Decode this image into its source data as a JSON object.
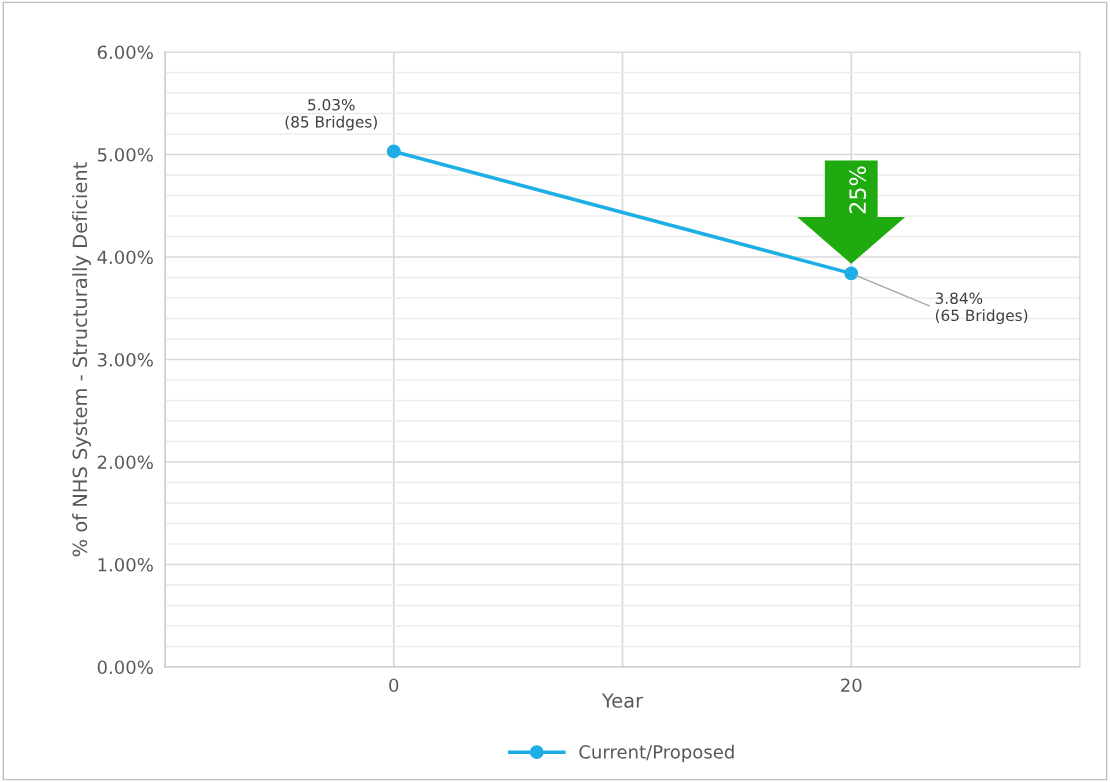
{
  "chart_data": {
    "type": "line",
    "xlabel": "Year",
    "ylabel": "% of NHS System - Structurally Deficient",
    "x": [
      0,
      20
    ],
    "series": [
      {
        "name": "Current/Proposed",
        "color": "#1eaee6",
        "values": [
          5.03,
          3.84
        ],
        "value_labels": [
          "5.03%\n(85 Bridges)",
          "3.84%\n(65 Bridges)"
        ]
      }
    ],
    "xlim": [
      -10,
      30
    ],
    "xticks": [
      {
        "value": -10,
        "label": null
      },
      {
        "value": 0,
        "label": "0"
      },
      {
        "value": 10,
        "label": null
      },
      {
        "value": 20,
        "label": "20"
      },
      {
        "value": 30,
        "label": null
      }
    ],
    "ylim": [
      0,
      6
    ],
    "yticks": [
      {
        "value": 0,
        "label": "0.00%"
      },
      {
        "value": 1,
        "label": "1.00%"
      },
      {
        "value": 2,
        "label": "2.00%"
      },
      {
        "value": 3,
        "label": "3.00%"
      },
      {
        "value": 4,
        "label": "4.00%"
      },
      {
        "value": 5,
        "label": "5.00%"
      },
      {
        "value": 6,
        "label": "6.00%"
      }
    ],
    "grid": true,
    "legend": "bottom",
    "marker": "circle",
    "line_style": "solid",
    "annotations": [
      {
        "text": "25%",
        "x": 20,
        "y": 3.84
      }
    ]
  }
}
